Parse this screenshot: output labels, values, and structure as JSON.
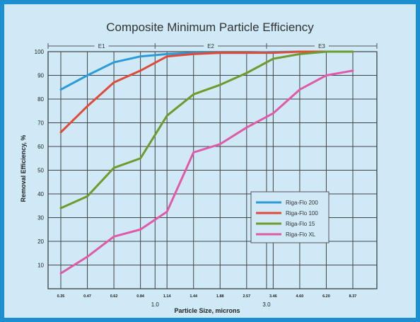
{
  "chart_data": {
    "type": "line",
    "title": "Composite Minimum Particle Efficiency",
    "xlabel": "Particle Size, microns",
    "ylabel": "Removal Efficiency, %",
    "ylim": [
      0,
      100
    ],
    "yticks": [
      10,
      20,
      30,
      40,
      50,
      60,
      70,
      80,
      90,
      100
    ],
    "categories": [
      "0.35",
      "0.47",
      "0.62",
      "0.84",
      "1.14",
      "1.44",
      "1.88",
      "2.57",
      "3.46",
      "4.60",
      "6.20",
      "8.37"
    ],
    "secondary_ticks": [
      "1.0",
      "3.0"
    ],
    "regions": [
      "E1",
      "E2",
      "E3"
    ],
    "grid": true,
    "legend_position": "lower-right",
    "series": [
      {
        "name": "Riga-Flo 200",
        "color": "#2a9bd8",
        "values": [
          84,
          90,
          95.5,
          98,
          99,
          99.5,
          99.5,
          99.5,
          99.8,
          100,
          100,
          100
        ]
      },
      {
        "name": "Riga-Flo 100",
        "color": "#e04a3a",
        "values": [
          66,
          77,
          87,
          92,
          98,
          99,
          99.5,
          99.5,
          99.5,
          100,
          100,
          100
        ]
      },
      {
        "name": "Riga-Flo 15",
        "color": "#6e9a2e",
        "values": [
          34,
          39,
          51,
          55,
          73,
          82,
          86,
          91,
          97,
          99,
          100,
          100
        ]
      },
      {
        "name": "Riga-Flo XL",
        "color": "#e05aa8",
        "values": [
          6.5,
          13.5,
          22,
          25,
          32.5,
          57.5,
          61,
          68,
          74,
          84,
          90,
          92
        ]
      }
    ]
  }
}
